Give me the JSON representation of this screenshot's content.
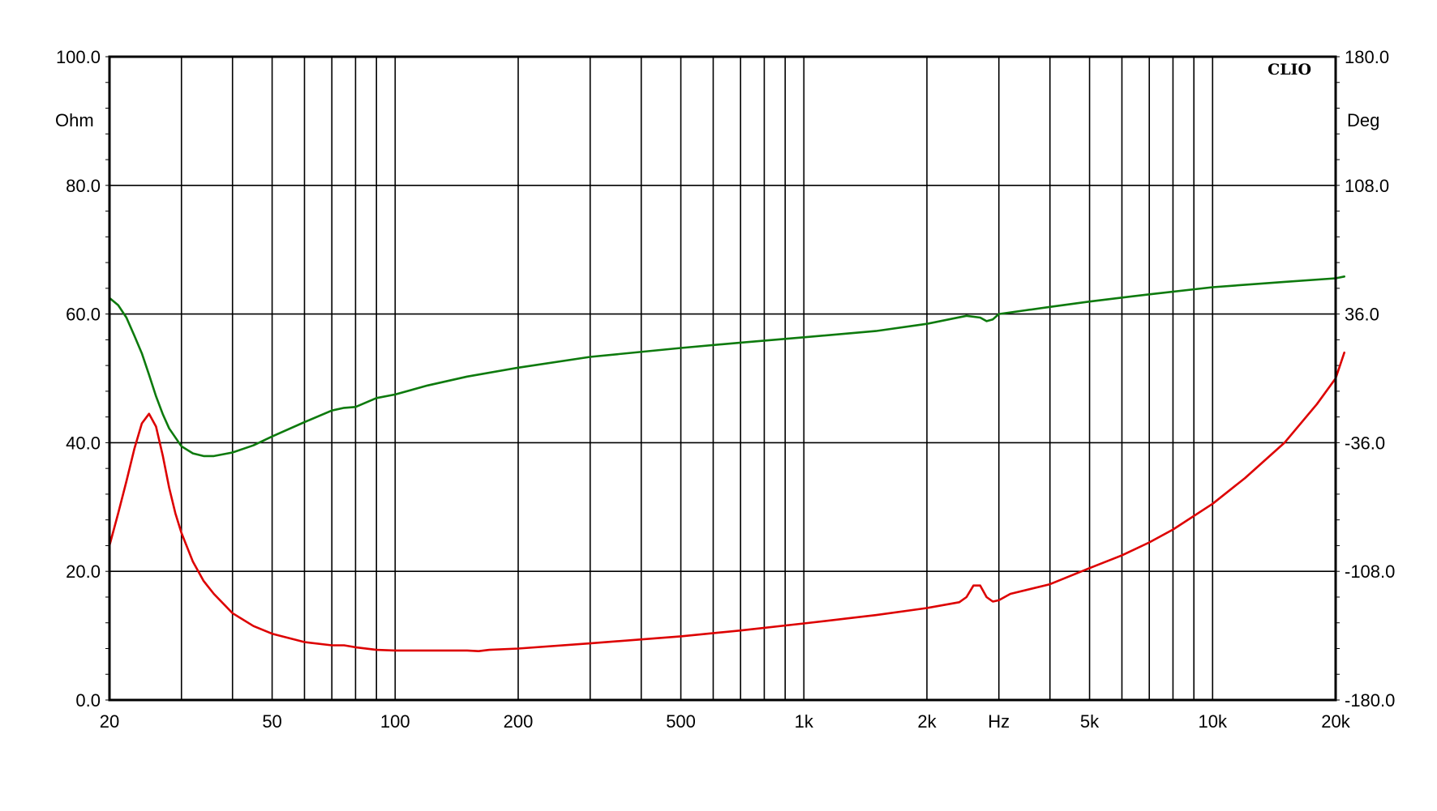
{
  "chart_data": {
    "type": "line",
    "brand": "CLIO",
    "x_scale": "log",
    "xlim": [
      20,
      20000
    ],
    "xlabel": "Hz",
    "x_ticks": [
      {
        "v": 20,
        "label": "20"
      },
      {
        "v": 50,
        "label": "50"
      },
      {
        "v": 100,
        "label": "100"
      },
      {
        "v": 200,
        "label": "200"
      },
      {
        "v": 500,
        "label": "500"
      },
      {
        "v": 1000,
        "label": "1k"
      },
      {
        "v": 2000,
        "label": "2k"
      },
      {
        "v": 3000,
        "label": "Hz"
      },
      {
        "v": 5000,
        "label": "5k"
      },
      {
        "v": 10000,
        "label": "10k"
      },
      {
        "v": 20000,
        "label": "20k"
      }
    ],
    "x_grid": [
      30,
      40,
      50,
      60,
      70,
      80,
      90,
      100,
      200,
      300,
      400,
      500,
      600,
      700,
      800,
      900,
      1000,
      2000,
      3000,
      4000,
      5000,
      6000,
      7000,
      8000,
      9000,
      10000,
      20000
    ],
    "y_left": {
      "unit": "Ohm",
      "lim": [
        0,
        100
      ],
      "ticks": [
        "0.0",
        "20.0",
        "40.0",
        "60.0",
        "80.0",
        "100.0"
      ]
    },
    "y_right": {
      "unit": "Deg",
      "lim": [
        -180,
        180
      ],
      "ticks": [
        "-180.0",
        "-108.0",
        "-36.0",
        "36.0",
        "108.0",
        "180.0"
      ]
    },
    "grid": true,
    "series": [
      {
        "color": "#dd0000",
        "axis": "left",
        "points": [
          [
            20,
            24
          ],
          [
            21,
            29
          ],
          [
            22,
            34
          ],
          [
            23,
            39
          ],
          [
            24,
            43
          ],
          [
            25,
            44.5
          ],
          [
            26,
            42.5
          ],
          [
            27,
            38
          ],
          [
            28,
            33
          ],
          [
            29,
            29
          ],
          [
            30,
            26
          ],
          [
            32,
            21.5
          ],
          [
            34,
            18.5
          ],
          [
            36,
            16.5
          ],
          [
            40,
            13.5
          ],
          [
            45,
            11.5
          ],
          [
            50,
            10.3
          ],
          [
            60,
            9
          ],
          [
            70,
            8.5
          ],
          [
            75,
            8.5
          ],
          [
            80,
            8.2
          ],
          [
            90,
            7.8
          ],
          [
            100,
            7.7
          ],
          [
            150,
            7.7
          ],
          [
            160,
            7.6
          ],
          [
            170,
            7.8
          ],
          [
            200,
            8
          ],
          [
            300,
            8.8
          ],
          [
            500,
            9.9
          ],
          [
            700,
            10.8
          ],
          [
            1000,
            11.9
          ],
          [
            1500,
            13.2
          ],
          [
            2000,
            14.3
          ],
          [
            2400,
            15.2
          ],
          [
            2500,
            16
          ],
          [
            2600,
            17.8
          ],
          [
            2700,
            17.8
          ],
          [
            2800,
            16
          ],
          [
            2900,
            15.3
          ],
          [
            3000,
            15.5
          ],
          [
            3200,
            16.5
          ],
          [
            4000,
            18
          ],
          [
            5000,
            20.5
          ],
          [
            6000,
            22.5
          ],
          [
            7000,
            24.5
          ],
          [
            8000,
            26.5
          ],
          [
            10000,
            30.5
          ],
          [
            12000,
            34.5
          ],
          [
            15000,
            40
          ],
          [
            18000,
            46
          ],
          [
            20000,
            50
          ],
          [
            21000,
            54
          ]
        ]
      },
      {
        "color": "#0d7a0d",
        "axis": "right",
        "points": [
          [
            20,
            45
          ],
          [
            21,
            41
          ],
          [
            22,
            34
          ],
          [
            23,
            24
          ],
          [
            24,
            14
          ],
          [
            25,
            2
          ],
          [
            26,
            -10
          ],
          [
            27,
            -20
          ],
          [
            28,
            -28
          ],
          [
            30,
            -38
          ],
          [
            32,
            -42
          ],
          [
            34,
            -43.5
          ],
          [
            36,
            -43.5
          ],
          [
            40,
            -41.5
          ],
          [
            45,
            -37.5
          ],
          [
            50,
            -32.5
          ],
          [
            60,
            -24.5
          ],
          [
            70,
            -18
          ],
          [
            75,
            -16.5
          ],
          [
            80,
            -16
          ],
          [
            90,
            -11
          ],
          [
            100,
            -9
          ],
          [
            120,
            -4
          ],
          [
            150,
            1
          ],
          [
            200,
            6
          ],
          [
            300,
            12
          ],
          [
            500,
            17
          ],
          [
            700,
            20
          ],
          [
            1000,
            23
          ],
          [
            1500,
            26.5
          ],
          [
            2000,
            30.5
          ],
          [
            2500,
            35
          ],
          [
            2700,
            34
          ],
          [
            2800,
            32
          ],
          [
            2900,
            33
          ],
          [
            3000,
            36
          ],
          [
            4000,
            40
          ],
          [
            5000,
            43
          ],
          [
            7000,
            47
          ],
          [
            10000,
            51
          ],
          [
            15000,
            54
          ],
          [
            20000,
            56
          ],
          [
            21000,
            57
          ]
        ]
      }
    ]
  }
}
